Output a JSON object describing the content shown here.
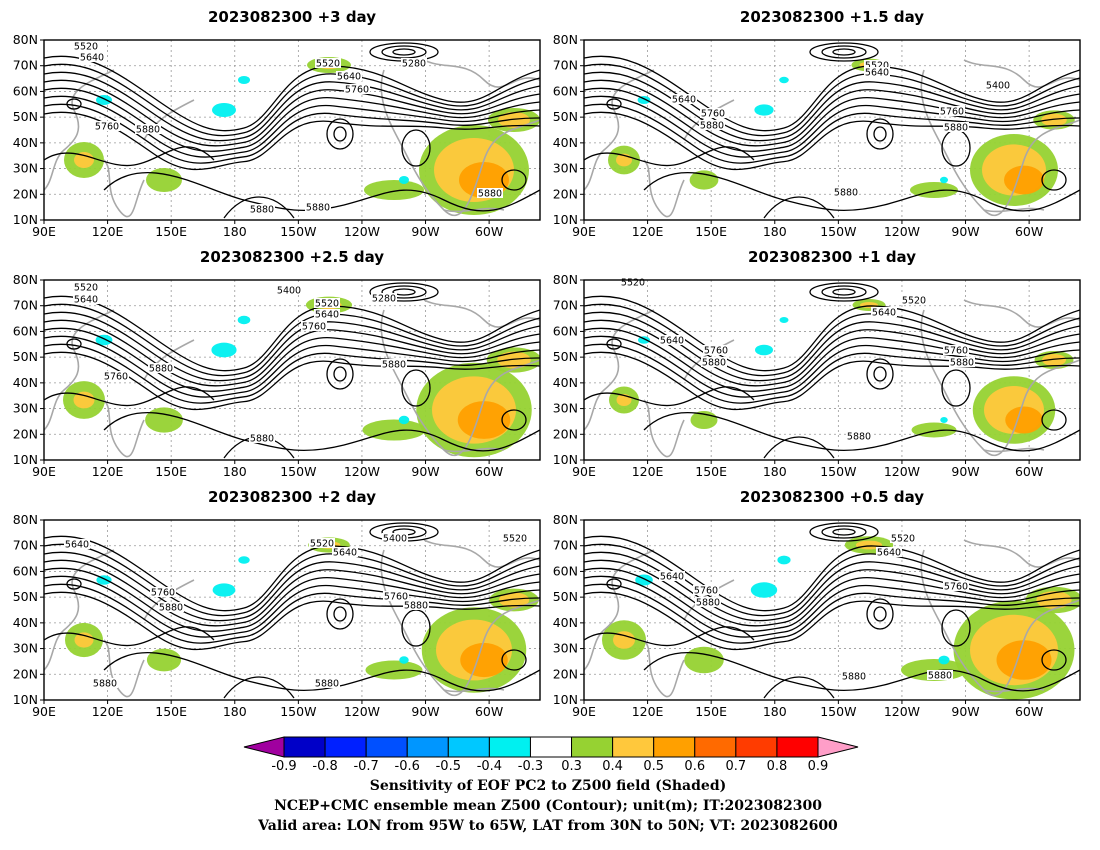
{
  "panels": [
    {
      "title": "2023082300 +3 day",
      "labels": [
        "5520",
        "5640",
        "5760",
        "5880",
        "5520",
        "5640",
        "5760",
        "5280",
        "5880",
        "5880",
        "5880"
      ]
    },
    {
      "title": "2023082300 +1.5 day",
      "labels": [
        "5520",
        "5640",
        "5400",
        "5640",
        "5760",
        "5880",
        "5760",
        "5880",
        "5880"
      ]
    },
    {
      "title": "2023082300 +2.5 day",
      "labels": [
        "5520",
        "5640",
        "5400",
        "5520",
        "5640",
        "5760",
        "5280",
        "5760",
        "5880",
        "5880",
        "5880"
      ]
    },
    {
      "title": "2023082300 +1 day",
      "labels": [
        "5520",
        "5520",
        "5640",
        "5640",
        "5760",
        "5880",
        "5760",
        "5880",
        "5880"
      ]
    },
    {
      "title": "2023082300 +2 day",
      "labels": [
        "5640",
        "5520",
        "5520",
        "5640",
        "5400",
        "5760",
        "5880",
        "5760",
        "5880",
        "5880",
        "5880"
      ]
    },
    {
      "title": "2023082300 +0.5 day",
      "labels": [
        "5520",
        "5640",
        "5640",
        "5760",
        "5880",
        "5760",
        "5880",
        "5880"
      ]
    }
  ],
  "axes": {
    "lat_labels": [
      "10N",
      "20N",
      "30N",
      "40N",
      "50N",
      "60N",
      "70N",
      "80N"
    ],
    "lon_labels": [
      "90E",
      "120E",
      "150E",
      "180",
      "150W",
      "120W",
      "90W",
      "60W"
    ]
  },
  "colorbar": {
    "ticks": [
      "-0.9",
      "-0.8",
      "-0.7",
      "-0.6",
      "-0.5",
      "-0.4",
      "-0.3",
      "0.3",
      "0.4",
      "0.5",
      "0.6",
      "0.7",
      "0.8",
      "0.9"
    ],
    "colors": [
      "#a0009f",
      "#0000c8",
      "#0020ff",
      "#0050ff",
      "#0096ff",
      "#00c8ff",
      "#00f0f0",
      "#ffffff",
      "#96d232",
      "#ffc83c",
      "#ffa000",
      "#ff6a00",
      "#ff3c00",
      "#ff0000",
      "#ff9ec8"
    ]
  },
  "caption": [
    "Sensitivity of EOF PC2 to Z500 field (Shaded)",
    "NCEP+CMC ensemble mean Z500 (Contour); unit(m); IT:2023082300",
    "Valid area: LON from 95W to 65W, LAT from 30N to 50N; VT: 2023082600"
  ]
}
